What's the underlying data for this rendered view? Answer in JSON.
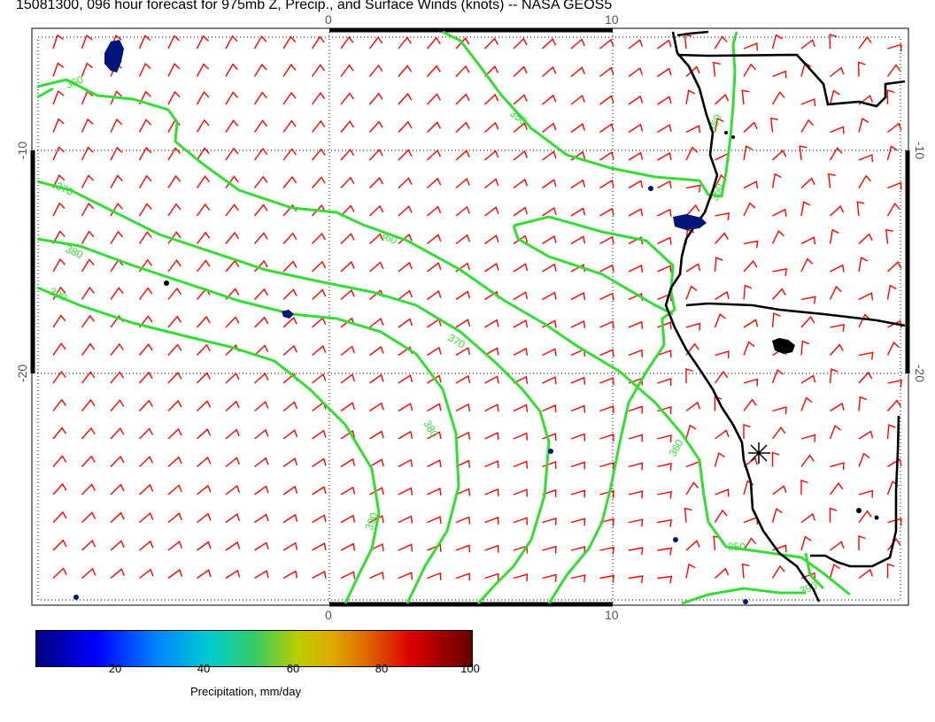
{
  "title": "15081300, 096 hour forecast for 975mb Z, Precip., and Surface Winds (knots) -- NASA GEOS5",
  "axes": {
    "x_ticks": [
      "0",
      "10"
    ],
    "y_ticks_left": [
      "-10",
      "-20"
    ],
    "y_ticks_right": [
      "-10",
      "-20"
    ]
  },
  "contour_labels": [
    "360",
    "350",
    "370",
    "380",
    "390",
    "360",
    "370",
    "380",
    "390",
    "350",
    "360",
    "350",
    "350",
    "390"
  ],
  "colorbar": {
    "ticks": [
      "20",
      "40",
      "60",
      "80",
      "100"
    ],
    "label": "Precipitation, mm/day",
    "colors": [
      "#000080",
      "#0000ff",
      "#00cccc",
      "#bbcc00",
      "#dd0000",
      "#660000"
    ]
  },
  "colors": {
    "wind_barbs": "#ff0000",
    "contours": "#33dd33",
    "coastline": "#000000"
  }
}
